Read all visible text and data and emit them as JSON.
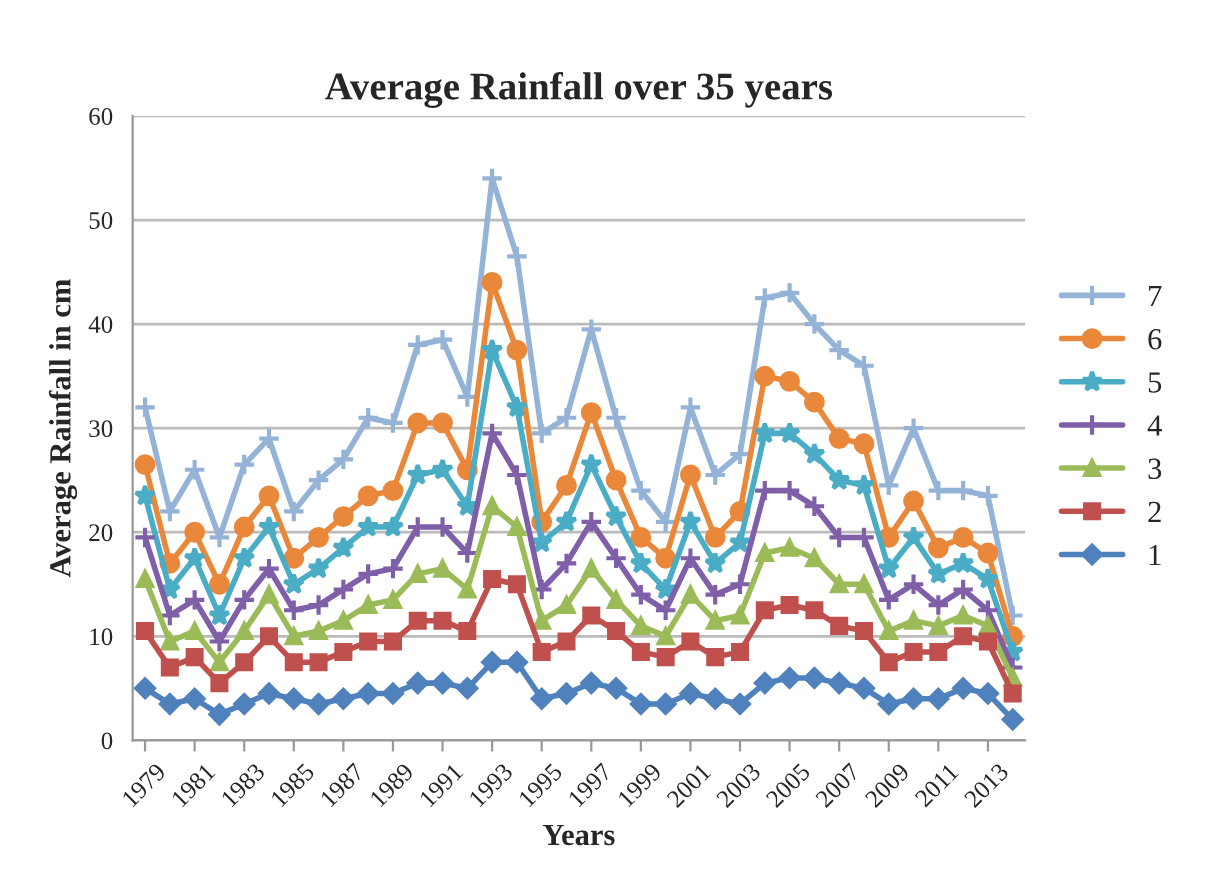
{
  "chart_data": {
    "type": "line",
    "title": "Average Rainfall over 35 years",
    "xlabel": "Years",
    "ylabel": "Average Rainfall in cm",
    "x": [
      1979,
      1980,
      1981,
      1982,
      1983,
      1984,
      1985,
      1986,
      1987,
      1988,
      1989,
      1990,
      1991,
      1992,
      1993,
      1994,
      1995,
      1996,
      1997,
      1998,
      1999,
      2000,
      2001,
      2002,
      2003,
      2004,
      2005,
      2006,
      2007,
      2008,
      2009,
      2010,
      2011,
      2012,
      2013,
      2014
    ],
    "xlim": [
      1978.5,
      2014.5
    ],
    "xticks": [
      1979,
      1981,
      1983,
      1985,
      1987,
      1989,
      1991,
      1993,
      1995,
      1997,
      1999,
      2001,
      2003,
      2005,
      2007,
      2009,
      2011,
      2013
    ],
    "ylim": [
      0,
      60
    ],
    "yticks": [
      0,
      10,
      20,
      30,
      40,
      50,
      60
    ],
    "grid": "y",
    "legend": "right",
    "series": [
      {
        "name": "7",
        "color": "#95b3d7",
        "marker": "cross",
        "values": [
          32,
          22,
          26,
          19.5,
          26.5,
          29,
          22,
          25,
          27,
          31,
          30.5,
          38,
          38.5,
          33,
          54,
          46.5,
          29.5,
          31,
          39.5,
          31,
          24,
          21,
          32,
          25.5,
          27.5,
          42.5,
          43,
          40,
          37.5,
          36,
          24.5,
          30,
          24,
          24,
          23.5,
          12
        ]
      },
      {
        "name": "6",
        "color": "#e9883a",
        "marker": "circle",
        "values": [
          26.5,
          17,
          20,
          15,
          20.5,
          23.5,
          17.5,
          19.5,
          21.5,
          23.5,
          24,
          30.5,
          30.5,
          26,
          44,
          37.5,
          21,
          24.5,
          31.5,
          25,
          19.5,
          17.5,
          25.5,
          19.5,
          22,
          35,
          34.5,
          32.5,
          29,
          28.5,
          19.5,
          23,
          18.5,
          19.5,
          18,
          10
        ]
      },
      {
        "name": "5",
        "color": "#4bacc6",
        "marker": "star",
        "values": [
          23.5,
          14.5,
          17.5,
          12,
          17.5,
          20.5,
          15,
          16.5,
          18.5,
          20.5,
          20.5,
          25.5,
          26,
          22.5,
          37.5,
          32,
          19,
          21,
          26.5,
          21.5,
          17,
          14.5,
          21,
          17,
          19,
          29.5,
          29.5,
          27.5,
          25,
          24.5,
          16.5,
          19.5,
          16,
          17,
          15.5,
          8.5
        ]
      },
      {
        "name": "4",
        "color": "#7f5fa8",
        "marker": "cross",
        "values": [
          19.5,
          12,
          13.5,
          9.5,
          13.5,
          16.5,
          12.5,
          13,
          14.5,
          16,
          16.5,
          20.5,
          20.5,
          18,
          29.5,
          25.5,
          14.5,
          17,
          21,
          17.5,
          14,
          12.5,
          17.5,
          14,
          15,
          24,
          24,
          22.5,
          19.5,
          19.5,
          13.5,
          15,
          13,
          14.5,
          12.5,
          7
        ]
      },
      {
        "name": "3",
        "color": "#9bbb59",
        "marker": "triangle",
        "values": [
          15.5,
          9.5,
          10.5,
          7.5,
          10.5,
          14,
          10,
          10.5,
          11.5,
          13,
          13.5,
          16,
          16.5,
          14.5,
          22.5,
          20.5,
          11.5,
          13,
          16.5,
          13.5,
          11,
          10,
          14,
          11.5,
          12,
          18,
          18.5,
          17.5,
          15,
          15,
          10.5,
          11.5,
          11,
          12,
          11,
          6
        ]
      },
      {
        "name": "2",
        "color": "#c0504d",
        "marker": "square",
        "values": [
          10.5,
          7,
          8,
          5.5,
          7.5,
          10,
          7.5,
          7.5,
          8.5,
          9.5,
          9.5,
          11.5,
          11.5,
          10.5,
          15.5,
          15,
          8.5,
          9.5,
          12,
          10.5,
          8.5,
          8,
          9.5,
          8,
          8.5,
          12.5,
          13,
          12.5,
          11,
          10.5,
          7.5,
          8.5,
          8.5,
          10,
          9.5,
          4.5
        ]
      },
      {
        "name": "1",
        "color": "#4f81bd",
        "marker": "diamond",
        "values": [
          5,
          3.5,
          4,
          2.5,
          3.5,
          4.5,
          4,
          3.5,
          4,
          4.5,
          4.5,
          5.5,
          5.5,
          5,
          7.5,
          7.5,
          4,
          4.5,
          5.5,
          5,
          3.5,
          3.5,
          4.5,
          4,
          3.5,
          5.5,
          6,
          6,
          5.5,
          5,
          3.5,
          4,
          4,
          5,
          4.5,
          2
        ]
      }
    ]
  }
}
